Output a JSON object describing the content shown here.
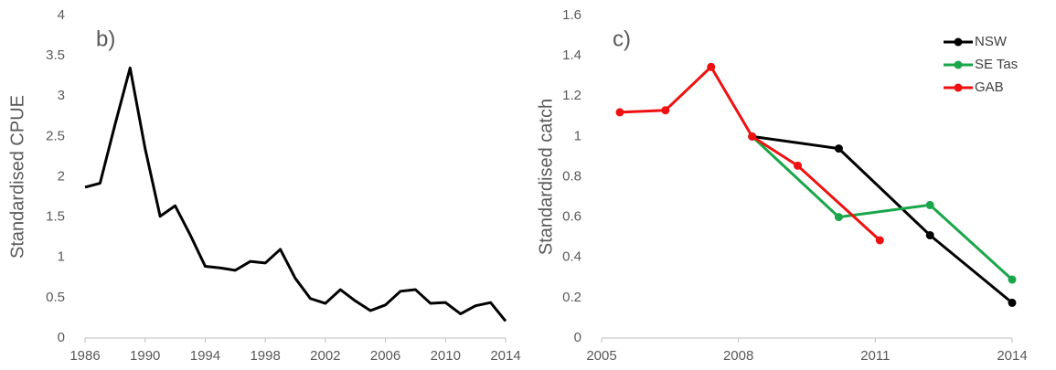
{
  "chart_data": [
    {
      "type": "line",
      "annotation": "b)",
      "ylabel": "Standardised CPUE",
      "xlim": [
        1986,
        2014
      ],
      "xticks": [
        1986,
        1990,
        1994,
        1998,
        2002,
        2006,
        2010,
        2014
      ],
      "ylim": [
        0,
        4
      ],
      "yticks": [
        0,
        0.5,
        1,
        1.5,
        2,
        2.5,
        3,
        3.5,
        4
      ],
      "series": [
        {
          "color": "#000000",
          "x": [
            1986,
            1987,
            1988,
            1989,
            1990,
            1991,
            1992,
            1993,
            1994,
            1995,
            1996,
            1997,
            1998,
            1999,
            2000,
            2001,
            2002,
            2003,
            2004,
            2005,
            2006,
            2007,
            2008,
            2009,
            2010,
            2011,
            2012,
            2013,
            2014
          ],
          "values": [
            1.87,
            1.92,
            2.65,
            3.35,
            2.35,
            1.51,
            1.64,
            1.28,
            0.89,
            0.87,
            0.84,
            0.95,
            0.93,
            1.1,
            0.74,
            0.49,
            0.43,
            0.6,
            0.46,
            0.34,
            0.41,
            0.58,
            0.6,
            0.43,
            0.44,
            0.3,
            0.4,
            0.44,
            0.21
          ]
        }
      ]
    },
    {
      "type": "line",
      "annotation": "c)",
      "ylabel": "Standardised catch",
      "legend": "top-right",
      "markers": true,
      "xlim": [
        2005,
        2014
      ],
      "xticks": [
        2005,
        2008,
        2011,
        2014
      ],
      "ylim": [
        0,
        1.6
      ],
      "yticks": [
        0,
        {
          "value": 0.2,
          "label": "0.2"
        },
        {
          "value": 0.4,
          "label": "0.4"
        },
        {
          "value": 0.6,
          "label": "0.6"
        },
        {
          "value": 0.8,
          "label": "0.8"
        },
        1,
        {
          "value": 1.2,
          "label": "1.2"
        },
        {
          "value": 1.4,
          "label": "1.4"
        },
        {
          "value": 1.6,
          "label": "1.6"
        }
      ],
      "series": [
        {
          "name": "NSW",
          "color": "#000000",
          "x": [
            2008.3,
            2010.2,
            2012.2,
            2014
          ],
          "values": [
            1.0,
            0.94,
            0.51,
            0.175
          ]
        },
        {
          "name": "SE Tas",
          "color": "#1aa64a",
          "x": [
            2008.3,
            2010.2,
            2012.2,
            2014
          ],
          "values": [
            1.0,
            0.6,
            0.66,
            0.29
          ]
        },
        {
          "name": "GAB",
          "color": "#ee1111",
          "x": [
            2005.4,
            2006.4,
            2007.4,
            2008.3,
            2009.3,
            2011.1
          ],
          "values": [
            1.12,
            1.13,
            1.345,
            1.0,
            0.855,
            0.485
          ]
        }
      ]
    }
  ]
}
